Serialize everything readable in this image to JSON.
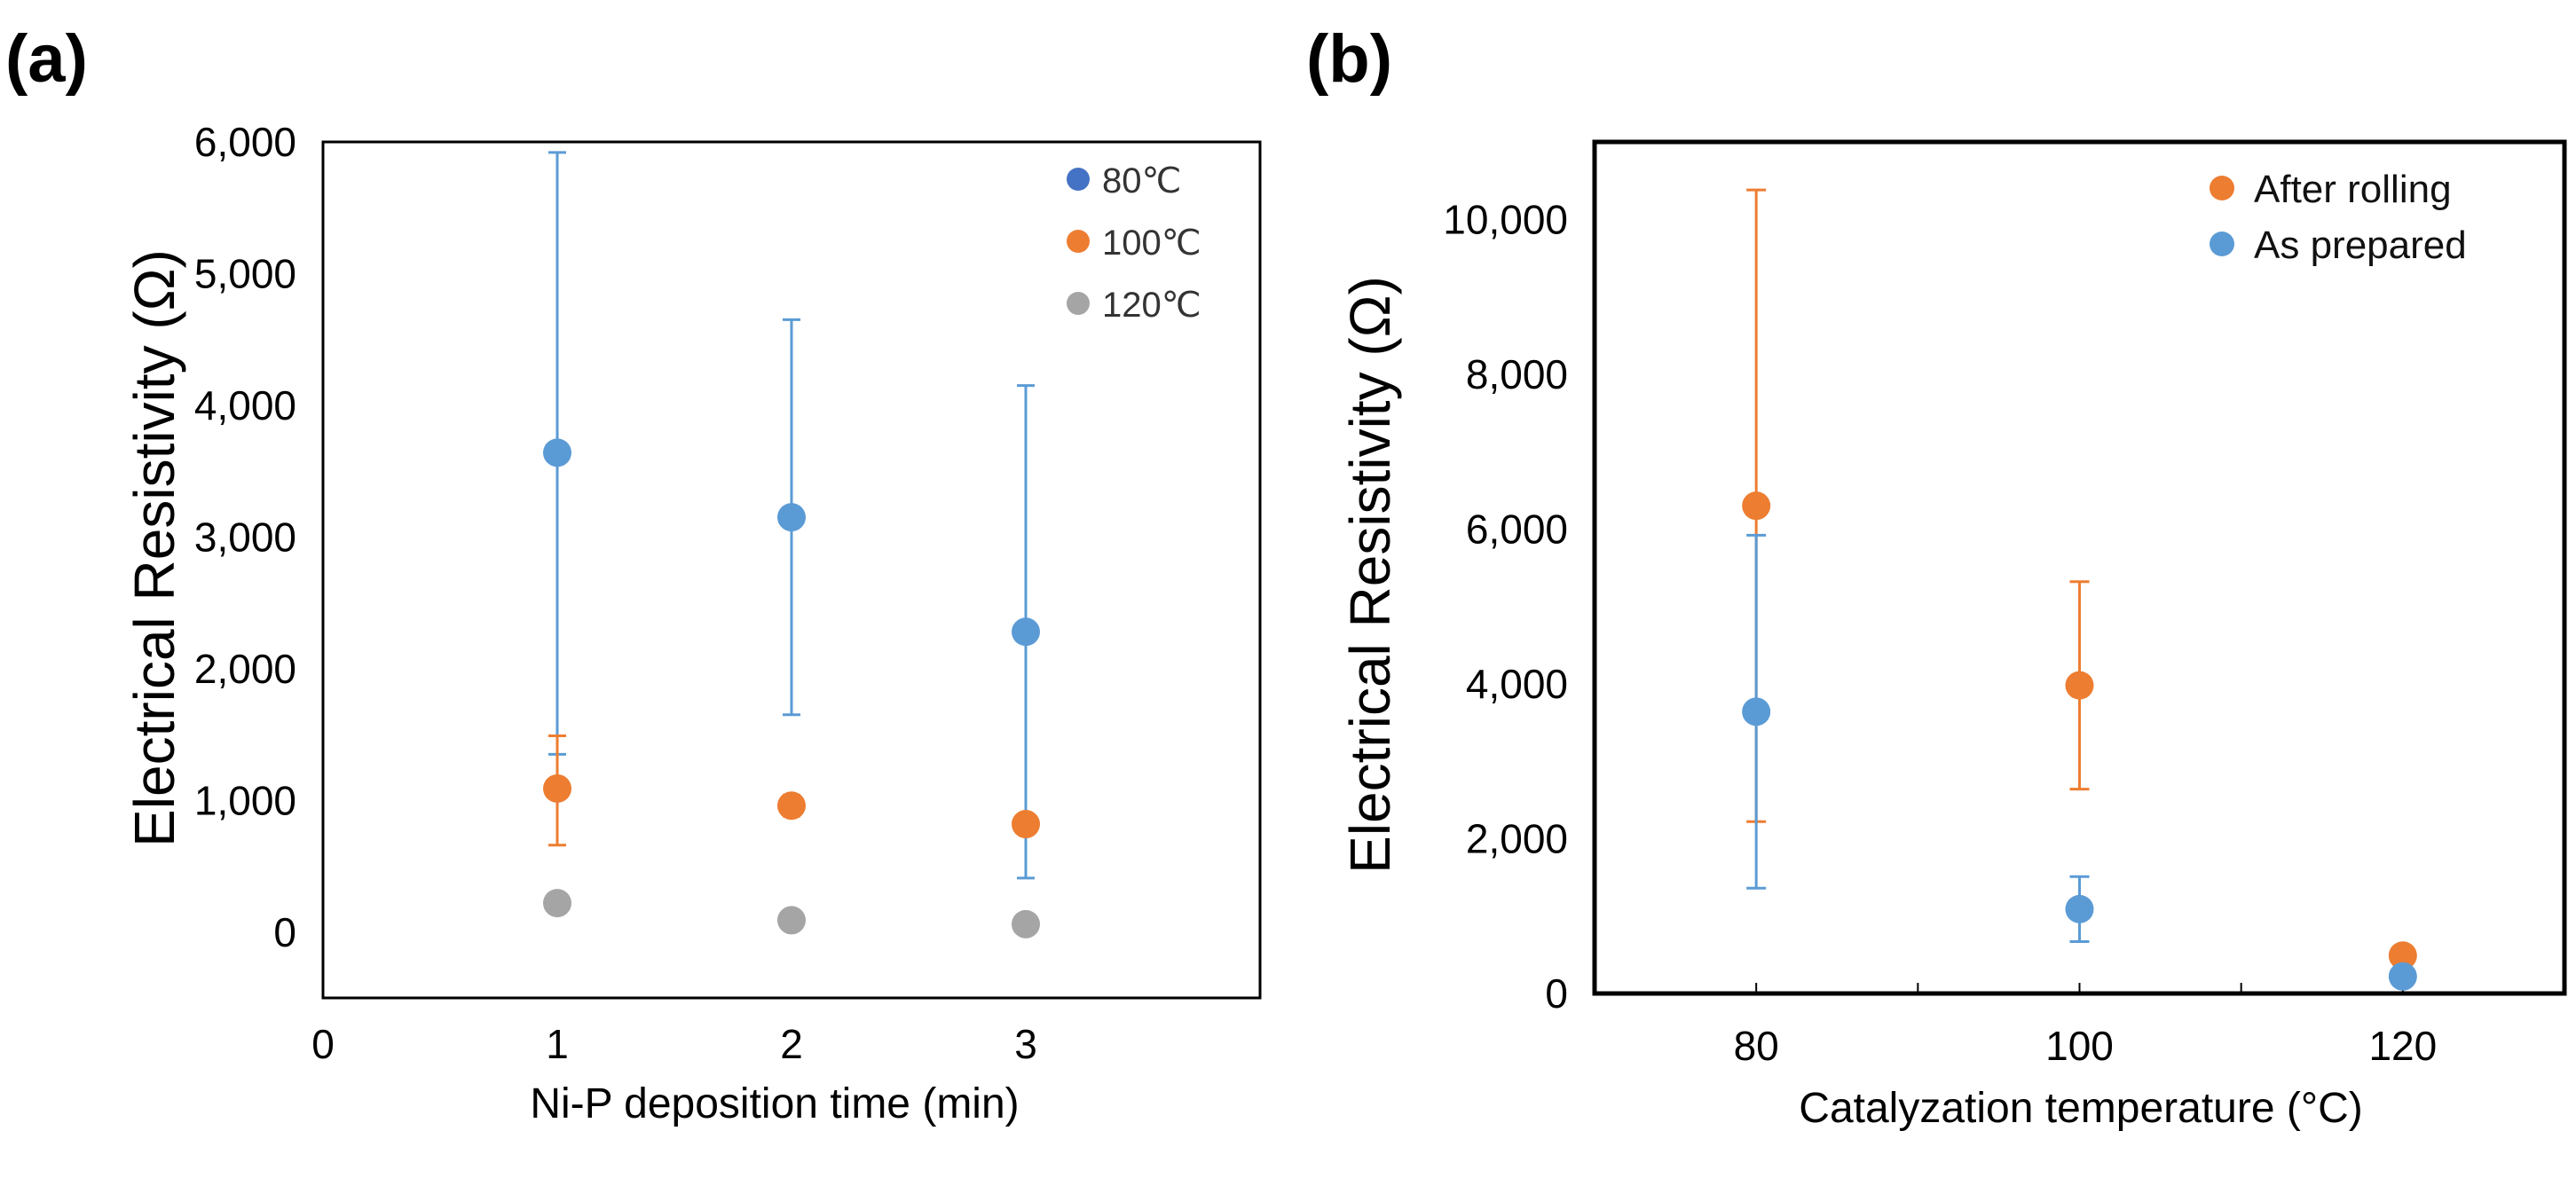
{
  "chart_data": [
    {
      "panel": "(a)",
      "type": "scatter",
      "xlabel": "Ni-P deposition time (min)",
      "ylabel": "Electrical Resistivity (Ω)",
      "xlim": [
        0,
        4
      ],
      "ylim": [
        -500,
        6000
      ],
      "xticks": [
        0,
        1,
        2,
        3
      ],
      "xtick_labels": [
        "0",
        "1",
        "2",
        "3"
      ],
      "yticks": [
        0,
        1000,
        2000,
        3000,
        4000,
        5000,
        6000
      ],
      "ytick_labels": [
        "0",
        "1,000",
        "2,000",
        "3,000",
        "4,000",
        "5,000",
        "6,000"
      ],
      "legend_position": "top-right",
      "series": [
        {
          "name": "80℃",
          "color": "#5b9bd5",
          "legend_color": "#4472c4",
          "x": [
            1,
            2,
            3
          ],
          "y": [
            3640,
            3150,
            2280
          ],
          "err_low": [
            2290,
            1500,
            1870
          ],
          "err_high": [
            2280,
            1500,
            1870
          ]
        },
        {
          "name": "100℃",
          "color": "#ed7d31",
          "legend_color": "#ed7d31",
          "x": [
            1,
            2,
            3
          ],
          "y": [
            1090,
            960,
            820
          ],
          "err_low": [
            430,
            80,
            0
          ],
          "err_high": [
            400,
            80,
            0
          ]
        },
        {
          "name": "120℃",
          "color": "#a5a5a5",
          "legend_color": "#a5a5a5",
          "x": [
            1,
            2,
            3
          ],
          "y": [
            220,
            90,
            60
          ],
          "err_low": [
            0,
            0,
            0
          ],
          "err_high": [
            0,
            0,
            0
          ]
        }
      ]
    },
    {
      "panel": "(b)",
      "type": "scatter",
      "xlabel": "Catalyzation temperature (°C)",
      "ylabel": "Electrical Resistivity (Ω)",
      "xlim": [
        70,
        130
      ],
      "ylim": [
        0,
        11000
      ],
      "xticks": [
        80,
        100,
        120
      ],
      "xtick_labels": [
        "80",
        "100",
        "120"
      ],
      "minor_xticks": [
        90,
        110
      ],
      "yticks": [
        0,
        2000,
        4000,
        6000,
        8000,
        10000
      ],
      "ytick_labels": [
        "0",
        "2,000",
        "4,000",
        "6,000",
        "8,000",
        "10,000"
      ],
      "legend_position": "top-right",
      "series": [
        {
          "name": "After rolling",
          "color": "#ed7d31",
          "legend_color": "#ed7d31",
          "x": [
            80,
            100,
            120
          ],
          "y": [
            6300,
            3980,
            490
          ],
          "err_low": [
            4080,
            1340,
            0
          ],
          "err_high": [
            4080,
            1340,
            0
          ]
        },
        {
          "name": "As prepared",
          "color": "#5b9bd5",
          "legend_color": "#5b9bd5",
          "x": [
            80,
            100,
            120
          ],
          "y": [
            3640,
            1090,
            220
          ],
          "err_low": [
            2280,
            420,
            0
          ],
          "err_high": [
            2280,
            420,
            0
          ]
        }
      ]
    }
  ]
}
